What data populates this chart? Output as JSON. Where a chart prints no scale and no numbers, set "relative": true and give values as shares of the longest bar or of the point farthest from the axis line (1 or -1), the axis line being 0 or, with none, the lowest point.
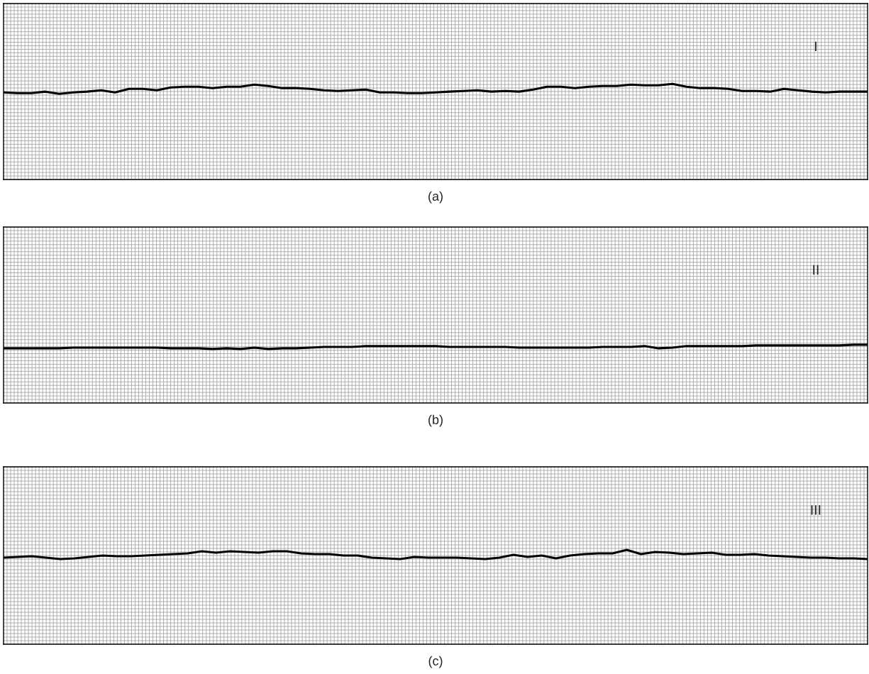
{
  "chart_data": [
    {
      "type": "line",
      "relative": true,
      "xlabel": "(a)",
      "annotations": [
        "I"
      ],
      "grid": true,
      "tick_labels": false,
      "marker": "none",
      "line_style": "solid",
      "categories": [
        null,
        null,
        null,
        null,
        null,
        null,
        null,
        null,
        null,
        null,
        null,
        null,
        null,
        null,
        null,
        null,
        null,
        null,
        null,
        null,
        null,
        null,
        null,
        null,
        null,
        null,
        null,
        null,
        null,
        null,
        null,
        null,
        null,
        null,
        null,
        null,
        null,
        null,
        null,
        null,
        null,
        null,
        null,
        null,
        null,
        null,
        null,
        null,
        null,
        null,
        null,
        null,
        null,
        null,
        null,
        null,
        null,
        null,
        null,
        null,
        null,
        null,
        null
      ],
      "series": [
        {
          "color": "#000000",
          "values": [
            0.911,
            0.904,
            0.904,
            0.919,
            0.896,
            0.911,
            0.919,
            0.933,
            0.911,
            0.948,
            0.948,
            0.933,
            0.963,
            0.97,
            0.97,
            0.956,
            0.97,
            0.97,
            0.993,
            0.978,
            0.956,
            0.956,
            0.948,
            0.933,
            0.926,
            0.933,
            0.941,
            0.911,
            0.911,
            0.904,
            0.904,
            0.911,
            0.919,
            0.926,
            0.933,
            0.919,
            0.926,
            0.919,
            0.941,
            0.97,
            0.97,
            0.956,
            0.97,
            0.978,
            0.978,
            0.993,
            0.985,
            0.985,
            1,
            0.97,
            0.956,
            0.956,
            0.948,
            0.926,
            0.926,
            0.919,
            0.948,
            0.933,
            0.919,
            0.911,
            0.919,
            0.919,
            0.919
          ]
        }
      ]
    },
    {
      "type": "line",
      "relative": true,
      "xlabel": "(b)",
      "annotations": [
        "II"
      ],
      "grid": true,
      "tick_labels": false,
      "marker": "none",
      "line_style": "solid",
      "categories": [
        null,
        null,
        null,
        null,
        null,
        null,
        null,
        null,
        null,
        null,
        null,
        null,
        null,
        null,
        null,
        null,
        null,
        null,
        null,
        null,
        null,
        null,
        null,
        null,
        null,
        null,
        null,
        null,
        null,
        null,
        null,
        null,
        null,
        null,
        null,
        null,
        null,
        null,
        null,
        null,
        null,
        null,
        null,
        null,
        null,
        null,
        null,
        null,
        null,
        null,
        null,
        null,
        null,
        null,
        null,
        null,
        null,
        null,
        null,
        null,
        null,
        null,
        null
      ],
      "series": [
        {
          "color": "#000000",
          "values": [
            0.939,
            0.939,
            0.939,
            0.939,
            0.939,
            0.951,
            0.951,
            0.951,
            0.951,
            0.951,
            0.951,
            0.951,
            0.939,
            0.939,
            0.939,
            0.927,
            0.939,
            0.927,
            0.951,
            0.927,
            0.939,
            0.939,
            0.951,
            0.963,
            0.963,
            0.963,
            0.976,
            0.976,
            0.976,
            0.976,
            0.976,
            0.976,
            0.963,
            0.963,
            0.963,
            0.963,
            0.963,
            0.951,
            0.951,
            0.951,
            0.951,
            0.951,
            0.951,
            0.963,
            0.963,
            0.963,
            0.976,
            0.939,
            0.951,
            0.976,
            0.976,
            0.976,
            0.976,
            0.976,
            0.988,
            0.988,
            0.988,
            0.988,
            0.988,
            0.988,
            0.988,
            1,
            1
          ]
        }
      ]
    },
    {
      "type": "line",
      "relative": true,
      "xlabel": "(c)",
      "annotations": [
        "III"
      ],
      "grid": true,
      "tick_labels": false,
      "marker": "none",
      "line_style": "solid",
      "categories": [
        null,
        null,
        null,
        null,
        null,
        null,
        null,
        null,
        null,
        null,
        null,
        null,
        null,
        null,
        null,
        null,
        null,
        null,
        null,
        null,
        null,
        null,
        null,
        null,
        null,
        null,
        null,
        null,
        null,
        null,
        null,
        null,
        null,
        null,
        null,
        null,
        null,
        null,
        null,
        null,
        null,
        null,
        null,
        null,
        null,
        null,
        null,
        null,
        null,
        null,
        null,
        null,
        null,
        null,
        null,
        null,
        null,
        null,
        null,
        null,
        null,
        null
      ],
      "series": [
        {
          "color": "#000000",
          "values": [
            0.917,
            0.925,
            0.932,
            0.917,
            0.902,
            0.91,
            0.925,
            0.94,
            0.932,
            0.932,
            0.94,
            0.947,
            0.955,
            0.962,
            0.985,
            0.97,
            0.985,
            0.977,
            0.97,
            0.985,
            0.985,
            0.962,
            0.955,
            0.955,
            0.94,
            0.94,
            0.917,
            0.91,
            0.902,
            0.925,
            0.917,
            0.917,
            0.917,
            0.91,
            0.902,
            0.917,
            0.947,
            0.925,
            0.94,
            0.91,
            0.94,
            0.955,
            0.962,
            0.962,
            1,
            0.955,
            0.977,
            0.97,
            0.955,
            0.962,
            0.97,
            0.947,
            0.947,
            0.955,
            0.94,
            0.932,
            0.925,
            0.917,
            0.917,
            0.91,
            0.91,
            0.902
          ]
        }
      ]
    }
  ]
}
